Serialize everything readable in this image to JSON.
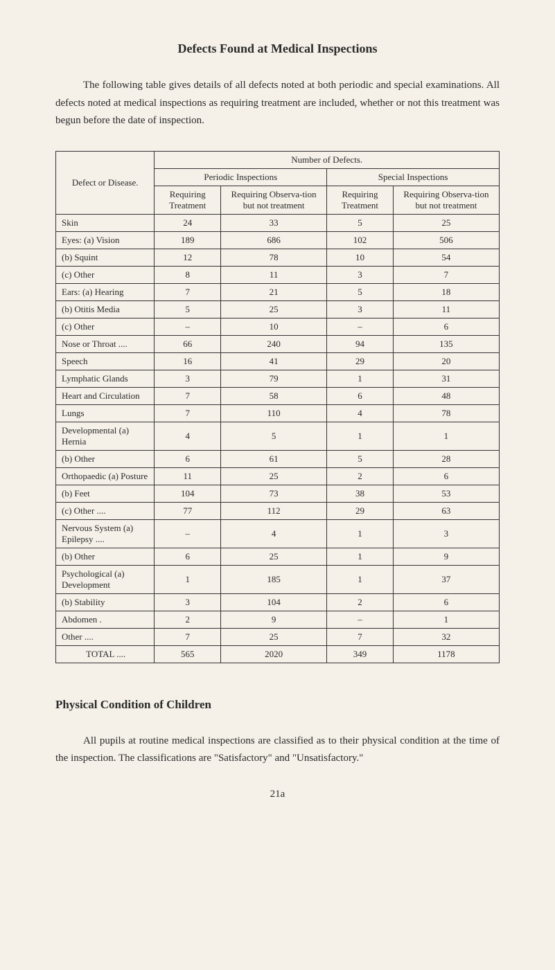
{
  "title": "Defects Found at Medical Inspections",
  "intro": "The following table gives details of all defects noted at both periodic and special examinations. All defects noted at medical inspections as requiring treatment are included, whether or not this treatment was begun before the date of inspection.",
  "table": {
    "number_header": "Number of Defects.",
    "defect_header": "Defect or Disease.",
    "periodic_header": "Periodic Inspections",
    "special_header": "Special Inspections",
    "req_treatment": "Requiring Treatment",
    "req_obs": "Requiring Observa-tion but not treatment",
    "req_treatment2": "Requiring Treatment",
    "req_obs2": "Requiring Observa-tion but not treatment",
    "rows": {
      "skin": {
        "label": "Skin",
        "v": [
          "24",
          "33",
          "5",
          "25"
        ]
      },
      "eyes_a": {
        "label": "Eyes: (a) Vision",
        "v": [
          "189",
          "686",
          "102",
          "506"
        ]
      },
      "eyes_b": {
        "label": "(b) Squint",
        "v": [
          "12",
          "78",
          "10",
          "54"
        ]
      },
      "eyes_c": {
        "label": "(c) Other",
        "v": [
          "8",
          "11",
          "3",
          "7"
        ]
      },
      "ears_a": {
        "label": "Ears: (a) Hearing",
        "v": [
          "7",
          "21",
          "5",
          "18"
        ]
      },
      "ears_b": {
        "label": "(b) Otitis Media",
        "v": [
          "5",
          "25",
          "3",
          "11"
        ]
      },
      "ears_c": {
        "label": "(c) Other",
        "v": [
          "–",
          "10",
          "–",
          "6"
        ]
      },
      "nose": {
        "label": "Nose or Throat ....",
        "v": [
          "66",
          "240",
          "94",
          "135"
        ]
      },
      "speech": {
        "label": "Speech",
        "v": [
          "16",
          "41",
          "29",
          "20"
        ]
      },
      "lymph": {
        "label": "Lymphatic Glands",
        "v": [
          "3",
          "79",
          "1",
          "31"
        ]
      },
      "heart": {
        "label": "Heart and Circulation",
        "v": [
          "7",
          "58",
          "6",
          "48"
        ]
      },
      "lungs": {
        "label": "Lungs",
        "v": [
          "7",
          "110",
          "4",
          "78"
        ]
      },
      "dev_a": {
        "label": "Developmental (a) Hernia",
        "v": [
          "4",
          "5",
          "1",
          "1"
        ]
      },
      "dev_b": {
        "label": "(b) Other",
        "v": [
          "6",
          "61",
          "5",
          "28"
        ]
      },
      "orth_a": {
        "label": "Orthopaedic (a) Posture",
        "v": [
          "11",
          "25",
          "2",
          "6"
        ]
      },
      "orth_b": {
        "label": "(b) Feet",
        "v": [
          "104",
          "73",
          "38",
          "53"
        ]
      },
      "orth_c": {
        "label": "(c) Other ....",
        "v": [
          "77",
          "112",
          "29",
          "63"
        ]
      },
      "nerv_a": {
        "label": "Nervous System (a) Epilepsy ....",
        "v": [
          "–",
          "4",
          "1",
          "3"
        ]
      },
      "nerv_b": {
        "label": "(b) Other",
        "v": [
          "6",
          "25",
          "1",
          "9"
        ]
      },
      "psych_a": {
        "label": "Psychological (a) Development",
        "v": [
          "1",
          "185",
          "1",
          "37"
        ]
      },
      "psych_b": {
        "label": "(b) Stability",
        "v": [
          "3",
          "104",
          "2",
          "6"
        ]
      },
      "abdomen": {
        "label": "Abdomen .",
        "v": [
          "2",
          "9",
          "–",
          "1"
        ]
      },
      "other": {
        "label": "Other ....",
        "v": [
          "7",
          "25",
          "7",
          "32"
        ]
      },
      "total": {
        "label": "TOTAL ....",
        "v": [
          "565",
          "2020",
          "349",
          "1178"
        ]
      }
    }
  },
  "section2_title": "Physical Condition of Children",
  "outro": "All pupils at routine medical inspections are classified as to their physical condition at the time of the inspection. The classifications are \"Satisfactory\" and \"Unsatisfactory.\"",
  "page_number": "21a",
  "style": {
    "background_color": "#f5f0e8",
    "text_color": "#2a2a2a",
    "border_color": "#333333",
    "body_font_size": 15,
    "table_font_size": 13,
    "title_font_size": 18,
    "section_font_size": 17
  }
}
